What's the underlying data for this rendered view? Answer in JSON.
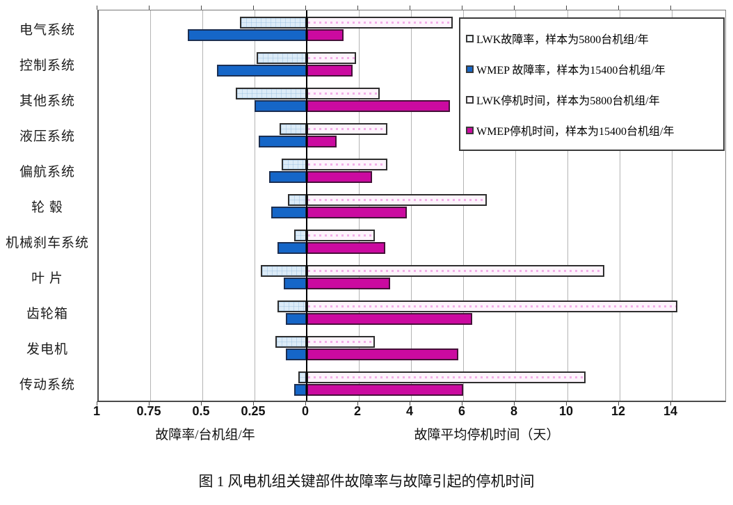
{
  "figure": {
    "caption": "图 1  风电机组关键部件故障率与故障引起的停机时间"
  },
  "chart_data": {
    "type": "bar",
    "orientation": "horizontal-diverging",
    "grid": true,
    "legend_position": "top-right",
    "categories": [
      "电气系统",
      "控制系统",
      "其他系统",
      "液压系统",
      "偏航系统",
      "轮 毂",
      "机械刹车系统",
      "叶 片",
      "齿轮箱",
      "发电机",
      "传动系统"
    ],
    "series": [
      {
        "name": "LWK故障率，样本为5800台机组/年",
        "side": "left",
        "unit": "故障率/台机组/年",
        "color": "#dcebf7",
        "values": [
          0.32,
          0.24,
          0.34,
          0.13,
          0.12,
          0.09,
          0.06,
          0.22,
          0.14,
          0.15,
          0.04
        ]
      },
      {
        "name": "WMEP 故障率，样本为15400台机组/年",
        "side": "left",
        "unit": "故障率/台机组/年",
        "color": "#1566c8",
        "values": [
          0.57,
          0.43,
          0.25,
          0.23,
          0.18,
          0.17,
          0.14,
          0.11,
          0.1,
          0.1,
          0.06
        ]
      },
      {
        "name": "LWK停机时间，样本为5800台机组/年",
        "side": "right",
        "unit": "天",
        "color": "#fdf4fc",
        "values": [
          5.6,
          1.9,
          2.8,
          3.1,
          3.1,
          6.9,
          2.6,
          11.4,
          14.2,
          2.6,
          10.7
        ]
      },
      {
        "name": "WMEP停机时间，样本为15400台机组/年",
        "side": "right",
        "unit": "天",
        "color": "#cb0aa0",
        "values": [
          1.4,
          1.75,
          5.5,
          1.15,
          2.5,
          3.85,
          3.0,
          3.2,
          6.35,
          5.8,
          6.0
        ]
      }
    ],
    "left_axis": {
      "label": "故障率/台机组/年",
      "ticks": [
        "1",
        "0.75",
        "0.5",
        "0.25"
      ],
      "tick_values": [
        1,
        0.75,
        0.5,
        0.25
      ],
      "range": [
        0,
        1
      ]
    },
    "right_axis": {
      "label": "故障平均停机时间（天）",
      "ticks": [
        "2",
        "4",
        "6",
        "8",
        "10",
        "12",
        "14"
      ],
      "tick_values": [
        2,
        4,
        6,
        8,
        10,
        12,
        14
      ],
      "range": [
        0,
        16
      ]
    },
    "zero_label": "0"
  },
  "legend": {
    "items": [
      {
        "label": "LWK故障率，样本为5800台机组/年",
        "swatch": "#f4f9fd"
      },
      {
        "label": "WMEP 故障率，样本为15400台机组/年",
        "swatch": "#1566c8"
      },
      {
        "label": "LWK停机时间，样本为5800台机组/年",
        "swatch": "#fdf4fc"
      },
      {
        "label": "WMEP停机时间，样本为15400台机组/年",
        "swatch": "#cb0aa0"
      }
    ]
  }
}
